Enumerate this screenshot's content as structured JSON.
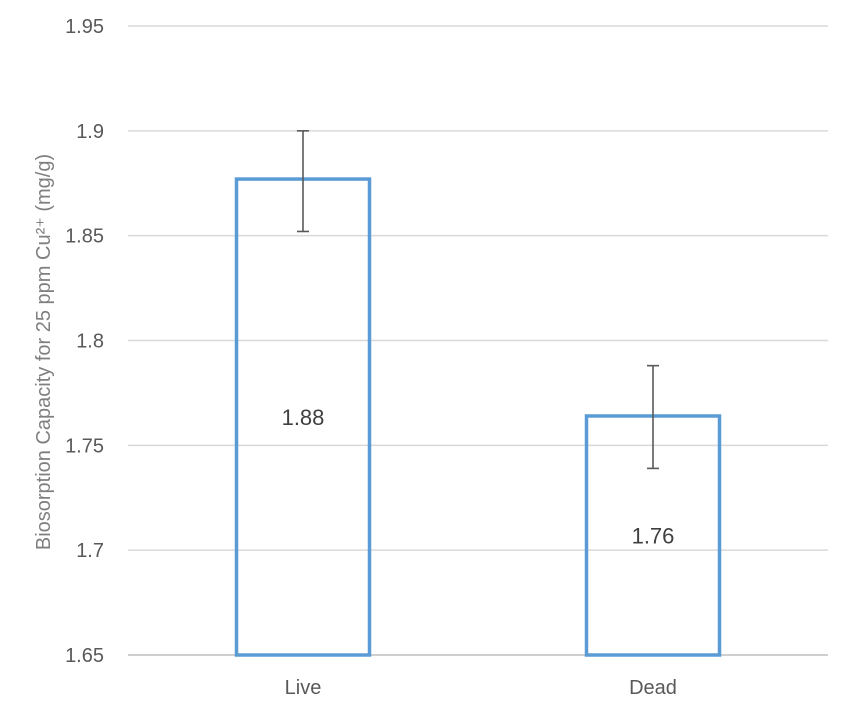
{
  "chart_data": {
    "type": "bar",
    "categories": [
      "Live",
      "Dead"
    ],
    "values": [
      1.877,
      1.764
    ],
    "data_labels": [
      "1.88",
      "1.76"
    ],
    "error_bars": [
      {
        "low": 1.852,
        "high": 1.9
      },
      {
        "low": 1.739,
        "high": 1.788
      }
    ],
    "ylabel": "Biosorption Capacity for 25 ppm Cu²⁺ (mg/g)",
    "ylim": [
      1.65,
      1.95
    ],
    "yticks": [
      1.65,
      1.7,
      1.75,
      1.8,
      1.85,
      1.9,
      1.95
    ],
    "ytick_labels": [
      "1.65",
      "1.7",
      "1.75",
      "1.8",
      "1.85",
      "1.9",
      "1.95"
    ],
    "grid": true,
    "bar_fill": "none",
    "bar_color": "#5b9bd5",
    "error_color": "#595959"
  }
}
